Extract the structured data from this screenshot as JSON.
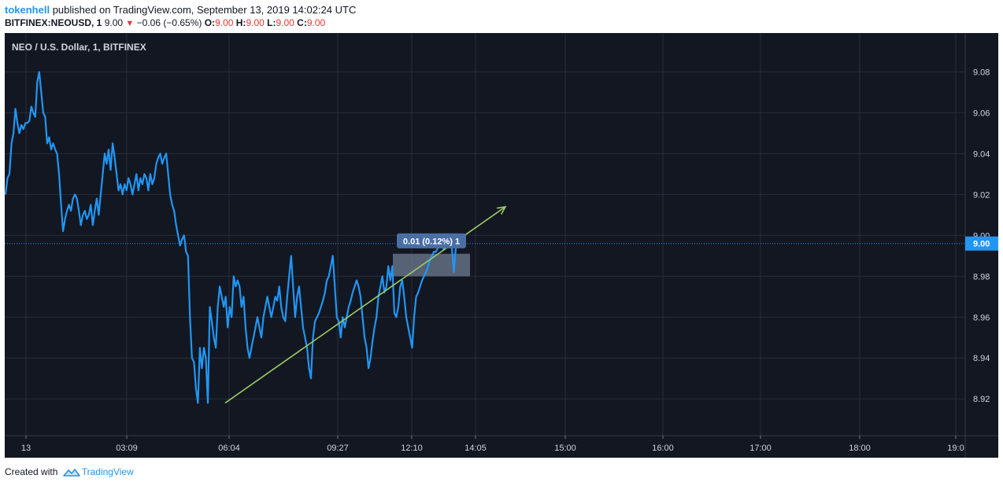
{
  "header": {
    "author": "tokenhell",
    "published_text": " published on TradingView.com, September 13, 2019 14:02:24 UTC",
    "symbol": "BITFINEX:NEOUSD, 1",
    "last": "9.00",
    "change": "−0.06 (−0.65%)",
    "o_label": "O:",
    "o_value": "9.00",
    "h_label": "H:",
    "h_value": "9.00",
    "l_label": "L:",
    "l_value": "9.00",
    "c_label": "C:",
    "c_value": "9.00"
  },
  "footer": {
    "created_with": "Created with",
    "brand": "TradingView"
  },
  "chart_data": {
    "type": "line",
    "title": "NEO / U.S. Dollar, 1, BITFINEX",
    "x_ticks": [
      "13",
      "03:09",
      "06:04",
      "09:27",
      "12:10",
      "14:05",
      "15:00",
      "16:00",
      "17:00",
      "18:00",
      "19:0"
    ],
    "y_ticks": [
      8.92,
      8.94,
      8.96,
      8.98,
      9.0,
      9.02,
      9.04,
      9.06,
      9.08
    ],
    "ylim": [
      8.902,
      9.099
    ],
    "last_price_label": "9.00",
    "last_price": 8.996,
    "grid": true,
    "colors": {
      "background": "#131722",
      "line": "#2196f3",
      "grid": "#2a2e39",
      "axis_text": "#d1d4dc",
      "trend": "#9ccc65",
      "box": "#5d6b82",
      "label_bg": "#4a6fa5"
    },
    "series": [
      {
        "values": [
          9.02,
          9.028,
          9.03,
          9.045,
          9.05,
          9.062,
          9.055,
          9.05,
          9.054,
          9.052,
          9.055,
          9.055,
          9.056,
          9.063,
          9.06,
          9.058,
          9.075,
          9.08,
          9.07,
          9.06,
          9.058,
          9.045,
          9.048,
          9.042,
          9.045,
          9.042,
          9.04,
          9.03,
          9.015,
          9.002,
          9.008,
          9.012,
          9.015,
          9.012,
          9.018,
          9.02,
          9.018,
          9.012,
          9.005,
          9.01,
          9.012,
          9.008,
          9.01,
          9.015,
          9.005,
          9.012,
          9.018,
          9.01,
          9.02,
          9.03,
          9.04,
          9.035,
          9.042,
          9.032,
          9.045,
          9.038,
          9.03,
          9.022,
          9.025,
          9.02,
          9.025,
          9.022,
          9.028,
          9.025,
          9.02,
          9.025,
          9.03,
          9.022,
          9.028,
          9.025,
          9.03,
          9.028,
          9.022,
          9.03,
          9.025,
          9.028,
          9.035,
          9.038,
          9.04,
          9.035,
          9.038,
          9.04,
          9.03,
          9.02,
          9.015,
          9.012,
          9.005,
          9.0,
          8.995,
          8.998,
          9.0,
          8.992,
          8.99,
          8.96,
          8.94,
          8.938,
          8.925,
          8.918,
          8.945,
          8.935,
          8.945,
          8.94,
          8.918,
          8.965,
          8.958,
          8.95,
          8.945,
          8.965,
          8.975,
          8.97,
          8.965,
          8.97,
          8.955,
          8.965,
          8.96,
          8.98,
          8.975,
          8.978,
          8.975,
          8.965,
          8.97,
          8.955,
          8.945,
          8.94,
          8.945,
          8.95,
          8.955,
          8.96,
          8.955,
          8.95,
          8.96,
          8.965,
          8.97,
          8.965,
          8.96,
          8.965,
          8.97,
          8.968,
          8.975,
          8.965,
          8.96,
          8.958,
          8.97,
          8.98,
          8.99,
          8.975,
          8.96,
          8.97,
          8.975,
          8.965,
          8.955,
          8.95,
          8.945,
          8.935,
          8.93,
          8.95,
          8.958,
          8.96,
          8.962,
          8.965,
          8.968,
          8.972,
          8.978,
          8.98,
          8.985,
          8.99,
          8.975,
          8.96,
          8.958,
          8.95,
          8.96,
          8.955,
          8.96,
          8.965,
          8.968,
          8.972,
          8.975,
          8.978,
          8.975,
          8.97,
          8.96,
          8.95,
          8.945,
          8.935,
          8.94,
          8.948,
          8.955,
          8.96,
          8.97,
          8.975,
          8.98,
          8.972,
          8.975,
          8.985,
          8.978,
          8.985,
          8.962,
          8.96,
          8.965,
          8.975,
          8.978,
          8.97,
          8.96,
          8.955,
          8.95,
          8.945,
          8.96,
          8.97,
          8.972,
          8.975,
          8.978,
          8.98,
          8.982,
          8.985,
          8.988,
          8.99,
          8.992,
          8.992,
          8.994,
          8.996,
          8.995,
          8.993,
          8.994,
          8.996,
          8.995,
          8.994,
          8.982,
          8.994,
          8.996,
          8.997
        ]
      }
    ],
    "measure_box": {
      "label": "0.01 (0.12%) 1",
      "y1": 8.991,
      "y2": 8.98
    },
    "trend_line": {
      "y_start": 8.918,
      "y_end": 9.014
    }
  }
}
